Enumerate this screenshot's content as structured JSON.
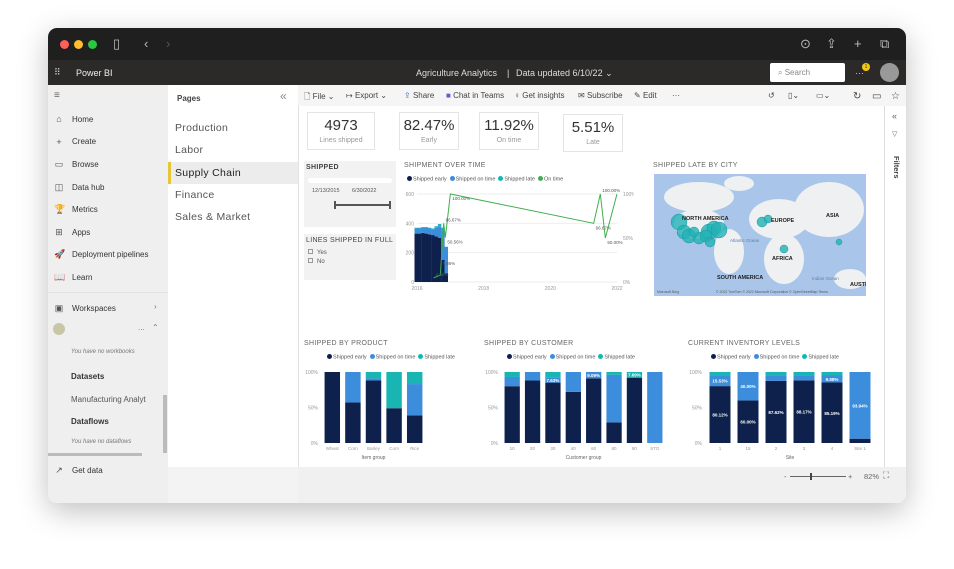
{
  "colors": {
    "early": "#0e214d",
    "on_time": "#3c8ddb",
    "late": "#18b5b3",
    "line": "#3fae4c",
    "map_water": "#a9c6ea",
    "map_land": "#eef0f1",
    "bubble": "#22b2b5"
  },
  "browser": {
    "icons": [
      "sidebar-icon",
      "back-icon",
      "forward-icon",
      "download-icon",
      "share-icon",
      "new-tab-icon",
      "tabs-icon"
    ]
  },
  "app": {
    "name": "Power BI",
    "report_title": "Agriculture Analytics",
    "separator": "|",
    "data_updated": "Data updated 6/10/22",
    "search_placeholder": "Search",
    "notification_count": "1"
  },
  "sidebar": {
    "items": [
      {
        "label": "Home",
        "icon": "⌂"
      },
      {
        "label": "Create",
        "icon": "+"
      },
      {
        "label": "Browse",
        "icon": "▭"
      },
      {
        "label": "Data hub",
        "icon": "◫"
      },
      {
        "label": "Metrics",
        "icon": "🏆"
      },
      {
        "label": "Apps",
        "icon": "⊞"
      },
      {
        "label": "Deployment pipelines",
        "icon": "🚀"
      },
      {
        "label": "Learn",
        "icon": "📖"
      }
    ],
    "workspaces": "Workspaces",
    "no_workbooks": "You have no workbooks",
    "datasets": "Datasets",
    "dataset_item": "Manufacturing Analyt",
    "dataflows": "Dataflows",
    "no_dataflows": "You have no dataflows",
    "get_data": "Get data",
    "more": "..."
  },
  "pages": {
    "title": "Pages",
    "items": [
      "Production",
      "Labor",
      "Supply Chain",
      "Finance",
      "Sales & Market"
    ],
    "active": "Supply Chain"
  },
  "toolbar": {
    "file": "File",
    "export": "Export",
    "share": "Share",
    "chat": "Chat in Teams",
    "insights": "Get insights",
    "subscribe": "Subscribe",
    "edit": "Edit",
    "more": "···"
  },
  "filters": {
    "label": "Filters"
  },
  "kpis": [
    {
      "value": "4973",
      "label": "Lines shipped"
    },
    {
      "value": "82.47%",
      "label": "Early"
    },
    {
      "value": "11.92%",
      "label": "On time"
    },
    {
      "value": "5.51%",
      "label": "Late"
    }
  ],
  "shipped_slicer": {
    "title": "SHIPPED",
    "start": "12/13/2015",
    "end": "6/30/2022"
  },
  "lines_in_full": {
    "title": "LINES SHIPPED IN FULL",
    "options": [
      "Yes",
      "No"
    ]
  },
  "legend": {
    "early": "Shipped early",
    "on_time": "Shipped on time",
    "late": "Shipped late",
    "line": "On time"
  },
  "map": {
    "title": "SHIPPED LATE BY CITY",
    "labels": [
      "NORTH AMERICA",
      "EUROPE",
      "ASIA",
      "AFRICA",
      "SOUTH AMERICA",
      "AUSTRA",
      "Atlantic Ocean",
      "Indian Ocean"
    ],
    "attribution": "© 2022 TomTom © 2022 Microsoft Corporation © OpenStreetMap Terms",
    "logo": "Microsoft Bing"
  },
  "bottom": {
    "zoom": "82%",
    "minus": "-",
    "plus": "+"
  },
  "chart_data": [
    {
      "type": "combo",
      "title": "SHIPMENT OVER TIME",
      "y_ticks": [
        "0",
        "200",
        "400",
        "600"
      ],
      "y2_ticks": [
        "0%",
        "50%",
        "100%"
      ],
      "x_ticks": [
        "2016",
        "2018",
        "2020",
        "2022"
      ],
      "ylim": [
        0,
        600
      ],
      "y2lim": [
        0,
        100
      ],
      "bars": {
        "x": [
          2016.0,
          2016.1,
          2016.2,
          2016.3,
          2016.4,
          2016.5,
          2016.6,
          2016.7,
          2016.8,
          2016.9
        ],
        "early": [
          330,
          330,
          335,
          330,
          325,
          320,
          310,
          300,
          150,
          60
        ],
        "on_time": [
          35,
          35,
          35,
          40,
          40,
          40,
          60,
          80,
          200,
          180
        ],
        "late": [
          5,
          5,
          5,
          5,
          5,
          5,
          10,
          15,
          20,
          0
        ]
      },
      "line": {
        "x": [
          2016.5,
          2016.7,
          2016.8,
          2016.85,
          2016.9,
          2017.0,
          2021.3,
          2021.5,
          2021.65,
          2022.0
        ],
        "y": [
          4.68,
          7.86,
          66.67,
          50.56,
          66.67,
          100,
          66.67,
          100,
          50,
          100
        ],
        "labels": [
          "4.68%",
          "7.86%",
          "66.67%",
          "50.56%",
          "",
          "100.00%",
          "66.67%",
          "100.00%",
          "50.00%",
          ""
        ]
      }
    },
    {
      "type": "bar",
      "stacked": "percent",
      "title": "SHIPPED BY PRODUCT",
      "xlabel": "Item group",
      "categories": [
        "Wheat",
        "Corn",
        "Barley",
        "Corn",
        "Rice"
      ],
      "y_ticks": [
        "0%",
        "50%",
        "100%"
      ],
      "series": [
        {
          "name": "Shipped early",
          "values": [
            100,
            57,
            88,
            49,
            39
          ]
        },
        {
          "name": "Shipped on time",
          "values": [
            0,
            43,
            3,
            0,
            44
          ]
        },
        {
          "name": "Shipped late",
          "values": [
            0,
            0,
            9,
            51,
            17
          ]
        }
      ],
      "data_labels": []
    },
    {
      "type": "bar",
      "stacked": "percent",
      "title": "SHIPPED BY CUSTOMER",
      "xlabel": "Customer group",
      "categories": [
        "10",
        "20",
        "30",
        "40",
        "60",
        "80",
        "90",
        "STO"
      ],
      "y_ticks": [
        "0%",
        "50%",
        "100%"
      ],
      "series": [
        {
          "name": "Shipped early",
          "values": [
            80,
            88,
            85,
            72,
            91,
            29,
            92,
            0
          ]
        },
        {
          "name": "Shipped on time",
          "values": [
            13,
            12,
            7.63,
            28,
            9.09,
            67,
            0.31,
            100
          ]
        },
        {
          "name": "Shipped late",
          "values": [
            7,
            0,
            7.37,
            0,
            0,
            4,
            7.69,
            0
          ]
        }
      ],
      "data_labels": [
        {
          "cat": "30",
          "series": 1,
          "text": "7.63%"
        },
        {
          "cat": "60",
          "series": 1,
          "text": "9.09%"
        },
        {
          "cat": "90",
          "series": 2,
          "text": "7.69%"
        }
      ]
    },
    {
      "type": "bar",
      "stacked": "percent",
      "title": "CURRENT INVENTORY LEVELS",
      "xlabel": "Site",
      "categories": [
        "1",
        "15",
        "2",
        "3",
        "4",
        "Site 1"
      ],
      "y_ticks": [
        "0%",
        "50%",
        "100%"
      ],
      "series": [
        {
          "name": "Shipped early",
          "values": [
            80.12,
            60,
            87.62,
            88.17,
            85.19,
            6.06
          ]
        },
        {
          "name": "Shipped on time",
          "values": [
            15.53,
            40,
            8,
            7,
            9.88,
            93.94
          ]
        },
        {
          "name": "Shipped late",
          "values": [
            4.35,
            0,
            4.38,
            4.83,
            4.93,
            0
          ]
        }
      ],
      "data_labels": [
        {
          "cat": "1",
          "series": 0,
          "text": "80.12%"
        },
        {
          "cat": "1",
          "series": 1,
          "text": "15.53%"
        },
        {
          "cat": "15",
          "series": 0,
          "text": "60.00%"
        },
        {
          "cat": "15",
          "series": 1,
          "text": "40.00%"
        },
        {
          "cat": "2",
          "series": 0,
          "text": "87.62%"
        },
        {
          "cat": "3",
          "series": 0,
          "text": "88.17%"
        },
        {
          "cat": "4",
          "series": 0,
          "text": "85.19%"
        },
        {
          "cat": "4",
          "series": 1,
          "text": "9.88%"
        },
        {
          "cat": "Site 1",
          "series": 1,
          "text": "93.94%"
        }
      ]
    }
  ]
}
